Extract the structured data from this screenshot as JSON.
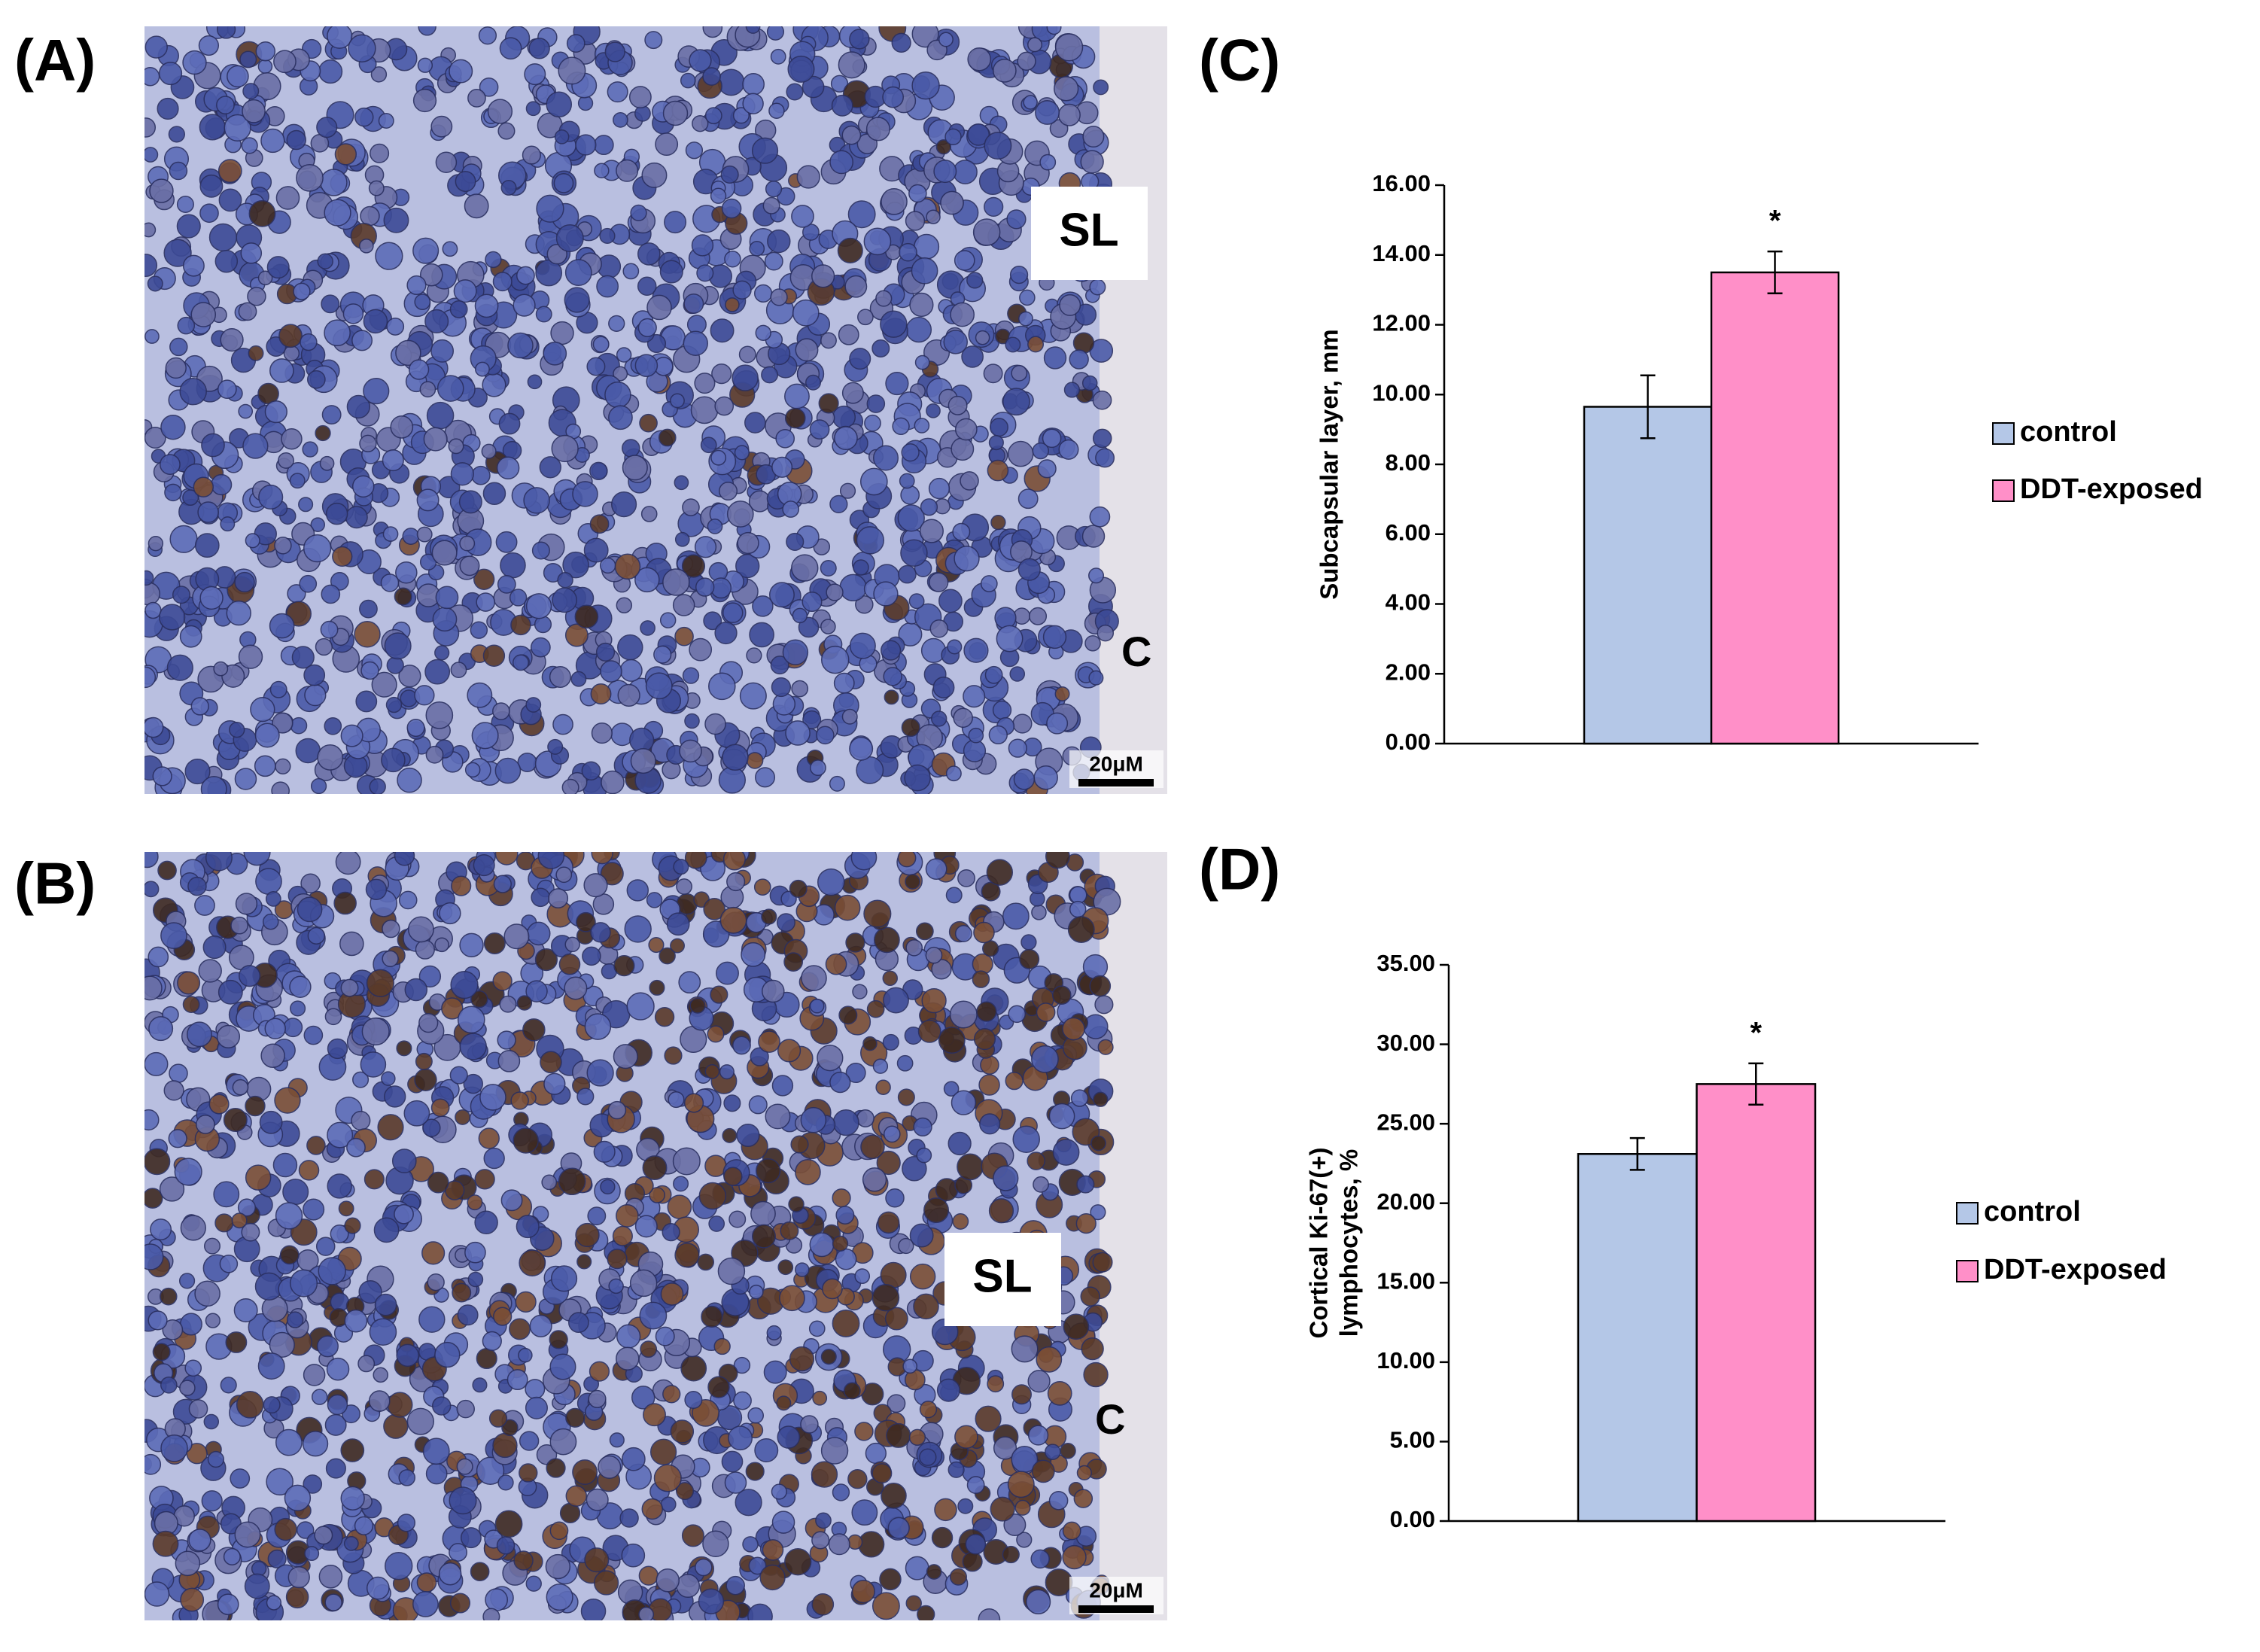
{
  "panels": [
    {
      "label": "(A)",
      "region": "SL",
      "capsule": "C",
      "scale_bar": "20μM"
    },
    {
      "label": "(B)",
      "region": "SL",
      "capsule": "C",
      "scale_bar": "20μM"
    }
  ],
  "chart_data": [
    {
      "type": "bar",
      "label": "(C)",
      "ylabel": [
        "Subcapsular layer, mm"
      ],
      "categories": [
        null
      ],
      "ylim": [
        0,
        16
      ],
      "yticks": [
        {
          "value": 0,
          "label": "0.00"
        },
        {
          "value": 2,
          "label": "2.00"
        },
        {
          "value": 4,
          "label": "4.00"
        },
        {
          "value": 6,
          "label": "6.00"
        },
        {
          "value": 8,
          "label": "8.00"
        },
        {
          "value": 10,
          "label": "10.00"
        },
        {
          "value": 12,
          "label": "12.00"
        },
        {
          "value": 14,
          "label": "14.00"
        },
        {
          "value": 16,
          "label": "16.00"
        }
      ],
      "series": [
        {
          "name": "control",
          "color": "#b4c7e7",
          "values": [
            9.65
          ],
          "errors": [
            0.9
          ]
        },
        {
          "name": "DDT-exposed",
          "color": "#ff8fc8",
          "values": [
            13.5
          ],
          "errors": [
            0.6
          ],
          "annotations": [
            "*"
          ]
        }
      ],
      "legend": "right"
    },
    {
      "type": "bar",
      "label": "(D)",
      "ylabel": [
        "Cortical Ki-67(+)",
        "lymphocytes, %"
      ],
      "categories": [
        null
      ],
      "ylim": [
        0,
        35
      ],
      "yticks": [
        {
          "value": 0,
          "label": "0.00"
        },
        {
          "value": 5,
          "label": "5.00"
        },
        {
          "value": 10,
          "label": "10.00"
        },
        {
          "value": 15,
          "label": "15.00"
        },
        {
          "value": 20,
          "label": "20.00"
        },
        {
          "value": 25,
          "label": "25.00"
        },
        {
          "value": 30,
          "label": "30.00"
        },
        {
          "value": 35,
          "label": "35.00"
        }
      ],
      "series": [
        {
          "name": "control",
          "color": "#b4c7e7",
          "values": [
            23.1
          ],
          "errors": [
            1.0
          ]
        },
        {
          "name": "DDT-exposed",
          "color": "#ff8fc8",
          "values": [
            27.5
          ],
          "errors": [
            1.3
          ],
          "annotations": [
            "*"
          ]
        }
      ],
      "legend": "right"
    }
  ]
}
